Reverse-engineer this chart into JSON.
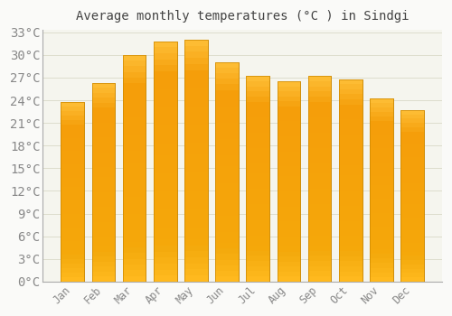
{
  "title": "Average monthly temperatures (°C ) in Sindgi",
  "months": [
    "Jan",
    "Feb",
    "Mar",
    "Apr",
    "May",
    "Jun",
    "Jul",
    "Aug",
    "Sep",
    "Oct",
    "Nov",
    "Dec"
  ],
  "temperatures": [
    23.8,
    26.3,
    30.0,
    31.8,
    32.0,
    29.0,
    27.2,
    26.5,
    27.2,
    26.8,
    24.3,
    22.7
  ],
  "bar_color_top": "#FFC133",
  "bar_color_mid": "#F5A800",
  "bar_color_bot": "#FFCD66",
  "bar_edge_color": "#CC8800",
  "background_color": "#FAFAF8",
  "plot_bg_color": "#F5F5EE",
  "grid_color": "#DDDDCC",
  "title_color": "#444444",
  "tick_label_color": "#888888",
  "spine_color": "#AAAAAA",
  "ylim_max": 33,
  "yticks": [
    0,
    3,
    6,
    9,
    12,
    15,
    18,
    21,
    24,
    27,
    30,
    33
  ],
  "title_fontsize": 10,
  "tick_fontsize": 8.5
}
